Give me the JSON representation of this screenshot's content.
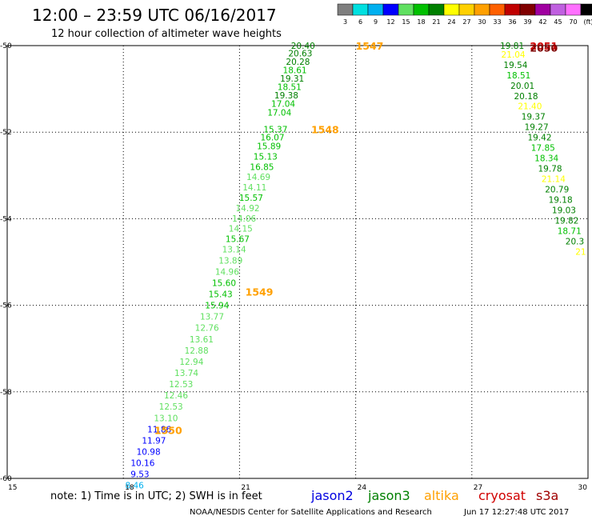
{
  "header": {
    "title": "12:00 – 23:59 UTC 06/16/2017",
    "subtitle": "12 hour collection of altimeter wave heights"
  },
  "color_scale": {
    "labels": [
      "3",
      "6",
      "9",
      "12",
      "15",
      "18",
      "21",
      "24",
      "27",
      "30",
      "33",
      "36",
      "39",
      "42",
      "45",
      "70",
      "(ft)"
    ],
    "colors": [
      "#7f7f7f",
      "#00e0e0",
      "#00b0f0",
      "#0000ff",
      "#60e060",
      "#00c000",
      "#008000",
      "#ffff00",
      "#ffd000",
      "#ffa000",
      "#ff6000",
      "#c00000",
      "#800000",
      "#a000a0",
      "#c060e0",
      "#ff70ff",
      "#000000"
    ]
  },
  "footer": {
    "note": "note: 1) Time is in UTC; 2) SWH is in feet",
    "satellites": [
      {
        "name": "jason2",
        "color": "#0000e0"
      },
      {
        "name": "jason3",
        "color": "#008000"
      },
      {
        "name": "altika",
        "color": "#ffa000"
      },
      {
        "name": "cryosat",
        "color": "#d00000"
      },
      {
        "name": "s3a",
        "color": "#a00000"
      }
    ],
    "credit": "NOAA/NESDIS Center for Satellite Applications and Research",
    "timestamp": "Jun 17 12:27:48 UTC 2017"
  },
  "chart_data": {
    "type": "scatter",
    "xlim": [
      15,
      30
    ],
    "ylim": [
      -60,
      -50
    ],
    "x_ticks": [
      "15",
      "18",
      "21",
      "24",
      "27",
      "30"
    ],
    "y_ticks": [
      "-50",
      "-52",
      "-54",
      "-56",
      "-58",
      "-60"
    ],
    "grid": true,
    "pass_labels": [
      {
        "text": "1547",
        "x": 24.0,
        "y": -50.0,
        "color": "#ffa000"
      },
      {
        "text": "1548",
        "x": 22.85,
        "y": -51.93,
        "color": "#ffa000"
      },
      {
        "text": "1549",
        "x": 21.15,
        "y": -55.68,
        "color": "#ffa000"
      },
      {
        "text": "1550",
        "x": 18.8,
        "y": -58.88,
        "color": "#ffa000"
      },
      {
        "text": "2051",
        "x": 28.5,
        "y": -50.0,
        "color": "#d00000"
      },
      {
        "text": "2050",
        "x": 28.5,
        "y": -50.05,
        "color": "#800000"
      }
    ],
    "series": [
      {
        "name": "altika pass",
        "points": [
          {
            "x": 22.95,
            "y": -50.0,
            "v": "20.40",
            "color": "#008000"
          },
          {
            "x": 22.88,
            "y": -50.18,
            "v": "20.63",
            "color": "#008000"
          },
          {
            "x": 22.82,
            "y": -50.37,
            "v": "20.28",
            "color": "#008000"
          },
          {
            "x": 22.74,
            "y": -50.56,
            "v": "18.61",
            "color": "#00c000"
          },
          {
            "x": 22.67,
            "y": -50.76,
            "v": "19.31",
            "color": "#008000"
          },
          {
            "x": 22.6,
            "y": -50.95,
            "v": "18.51",
            "color": "#00c000"
          },
          {
            "x": 22.52,
            "y": -51.15,
            "v": "19.38",
            "color": "#008000"
          },
          {
            "x": 22.44,
            "y": -51.34,
            "v": "17.04",
            "color": "#00c000"
          },
          {
            "x": 22.34,
            "y": -51.54,
            "v": "17.04",
            "color": "#00c000"
          },
          {
            "x": 22.24,
            "y": -51.93,
            "v": "15.37",
            "color": "#00c000"
          },
          {
            "x": 22.16,
            "y": -52.12,
            "v": "16.07",
            "color": "#00c000"
          },
          {
            "x": 22.07,
            "y": -52.32,
            "v": "15.89",
            "color": "#00c000"
          },
          {
            "x": 21.98,
            "y": -52.56,
            "v": "15.13",
            "color": "#00c000"
          },
          {
            "x": 21.89,
            "y": -52.8,
            "v": "16.85",
            "color": "#00c000"
          },
          {
            "x": 21.8,
            "y": -53.03,
            "v": "14.69",
            "color": "#60e060"
          },
          {
            "x": 21.7,
            "y": -53.27,
            "v": "14.11",
            "color": "#60e060"
          },
          {
            "x": 21.61,
            "y": -53.51,
            "v": "15.57",
            "color": "#00c000"
          },
          {
            "x": 21.52,
            "y": -53.75,
            "v": "14.92",
            "color": "#60e060"
          },
          {
            "x": 21.43,
            "y": -53.99,
            "v": "14.06",
            "color": "#60e060"
          },
          {
            "x": 21.34,
            "y": -54.22,
            "v": "14.15",
            "color": "#60e060"
          },
          {
            "x": 21.26,
            "y": -54.46,
            "v": "15.67",
            "color": "#00c000"
          },
          {
            "x": 21.17,
            "y": -54.7,
            "v": "13.14",
            "color": "#60e060"
          },
          {
            "x": 21.08,
            "y": -54.96,
            "v": "13.89",
            "color": "#60e060"
          },
          {
            "x": 20.99,
            "y": -55.22,
            "v": "14.96",
            "color": "#60e060"
          },
          {
            "x": 20.91,
            "y": -55.48,
            "v": "15.60",
            "color": "#00c000"
          },
          {
            "x": 20.82,
            "y": -55.74,
            "v": "15.43",
            "color": "#00c000"
          },
          {
            "x": 20.73,
            "y": -56.0,
            "v": "15.94",
            "color": "#00c000"
          },
          {
            "x": 20.6,
            "y": -56.26,
            "v": "13.77",
            "color": "#60e060"
          },
          {
            "x": 20.47,
            "y": -56.52,
            "v": "12.76",
            "color": "#60e060"
          },
          {
            "x": 20.33,
            "y": -56.78,
            "v": "13.61",
            "color": "#60e060"
          },
          {
            "x": 20.2,
            "y": -57.04,
            "v": "12.88",
            "color": "#60e060"
          },
          {
            "x": 20.07,
            "y": -57.3,
            "v": "12.94",
            "color": "#60e060"
          },
          {
            "x": 19.94,
            "y": -57.56,
            "v": "13.74",
            "color": "#60e060"
          },
          {
            "x": 19.8,
            "y": -57.82,
            "v": "12.53",
            "color": "#60e060"
          },
          {
            "x": 19.67,
            "y": -58.08,
            "v": "12.46",
            "color": "#60e060"
          },
          {
            "x": 19.54,
            "y": -58.34,
            "v": "12.53",
            "color": "#60e060"
          },
          {
            "x": 19.41,
            "y": -58.6,
            "v": "13.10",
            "color": "#60e060"
          },
          {
            "x": 19.24,
            "y": -58.86,
            "v": "11.86",
            "color": "#0000ff"
          },
          {
            "x": 19.1,
            "y": -59.12,
            "v": "11.97",
            "color": "#0000ff"
          },
          {
            "x": 18.96,
            "y": -59.38,
            "v": "10.98",
            "color": "#0000ff"
          },
          {
            "x": 18.81,
            "y": -59.64,
            "v": "10.16",
            "color": "#0000ff"
          },
          {
            "x": 18.67,
            "y": -59.9,
            "v": "9.53",
            "color": "#0000ff"
          },
          {
            "x": 18.53,
            "y": -60.16,
            "v": "8.46",
            "color": "#00b0f0"
          }
        ]
      },
      {
        "name": "cryosat pass",
        "points": [
          {
            "x": 28.35,
            "y": -50.0,
            "v": "19.81",
            "color": "#008000"
          },
          {
            "x": 28.38,
            "y": -50.2,
            "v": "21.04",
            "color": "#ffff00"
          },
          {
            "x": 28.44,
            "y": -50.44,
            "v": "19.54",
            "color": "#008000"
          },
          {
            "x": 28.52,
            "y": -50.68,
            "v": "18.51",
            "color": "#00c000"
          },
          {
            "x": 28.62,
            "y": -50.92,
            "v": "20.01",
            "color": "#008000"
          },
          {
            "x": 28.71,
            "y": -51.16,
            "v": "20.18",
            "color": "#008000"
          },
          {
            "x": 28.81,
            "y": -51.4,
            "v": "21.40",
            "color": "#ffff00"
          },
          {
            "x": 28.9,
            "y": -51.64,
            "v": "19.37",
            "color": "#008000"
          },
          {
            "x": 28.98,
            "y": -51.88,
            "v": "19.27",
            "color": "#008000"
          },
          {
            "x": 29.06,
            "y": -52.12,
            "v": "19.42",
            "color": "#008000"
          },
          {
            "x": 29.15,
            "y": -52.36,
            "v": "17.85",
            "color": "#00c000"
          },
          {
            "x": 29.24,
            "y": -52.6,
            "v": "18.34",
            "color": "#00c000"
          },
          {
            "x": 29.33,
            "y": -52.84,
            "v": "19.78",
            "color": "#008000"
          },
          {
            "x": 29.42,
            "y": -53.08,
            "v": "21.14",
            "color": "#ffff00"
          },
          {
            "x": 29.51,
            "y": -53.32,
            "v": "20.79",
            "color": "#008000"
          },
          {
            "x": 29.6,
            "y": -53.56,
            "v": "19.18",
            "color": "#008000"
          },
          {
            "x": 29.69,
            "y": -53.8,
            "v": "19.03",
            "color": "#008000"
          },
          {
            "x": 29.76,
            "y": -54.04,
            "v": "19.82",
            "color": "#008000"
          },
          {
            "x": 29.83,
            "y": -54.28,
            "v": "18.71",
            "color": "#00c000"
          },
          {
            "x": 29.9,
            "y": -54.52,
            "v": "20.3",
            "color": "#008000"
          },
          {
            "x": 29.95,
            "y": -54.76,
            "v": "21",
            "color": "#ffff00"
          }
        ]
      }
    ]
  }
}
